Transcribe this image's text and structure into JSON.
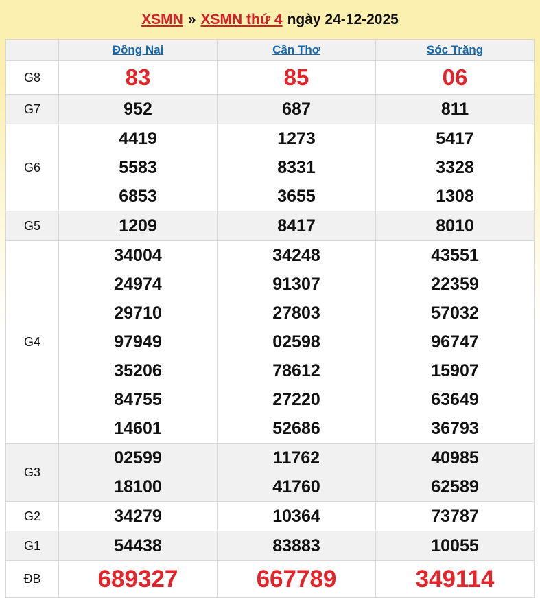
{
  "header": {
    "link_xsmn": "XSMN",
    "separator": "»",
    "link_day": "XSMN thứ 4",
    "date_text": "ngày 24-12-2025"
  },
  "colors": {
    "page_background": "#fcf0b0",
    "shade_row": "#f1f1f1",
    "highlight_red": "#e4242b",
    "link_blue": "#1568ad",
    "border": "#d8d8d8"
  },
  "table": {
    "columns": [
      "Đồng Nai",
      "Cần Thơ",
      "Sóc Trăng"
    ],
    "rows": [
      {
        "label": "G8",
        "values": [
          [
            "83"
          ],
          [
            "85"
          ],
          [
            "06"
          ]
        ]
      },
      {
        "label": "G7",
        "values": [
          [
            "952"
          ],
          [
            "687"
          ],
          [
            "811"
          ]
        ]
      },
      {
        "label": "G6",
        "values": [
          [
            "4419",
            "5583",
            "6853"
          ],
          [
            "1273",
            "8331",
            "3655"
          ],
          [
            "5417",
            "3328",
            "1308"
          ]
        ]
      },
      {
        "label": "G5",
        "values": [
          [
            "1209"
          ],
          [
            "8417"
          ],
          [
            "8010"
          ]
        ]
      },
      {
        "label": "G4",
        "values": [
          [
            "34004",
            "24974",
            "29710",
            "97949",
            "35206",
            "84755",
            "14601"
          ],
          [
            "34248",
            "91307",
            "27803",
            "02598",
            "78612",
            "27220",
            "52686"
          ],
          [
            "43551",
            "22359",
            "57032",
            "96747",
            "15907",
            "63649",
            "36793"
          ]
        ]
      },
      {
        "label": "G3",
        "values": [
          [
            "02599",
            "18100"
          ],
          [
            "11762",
            "41760"
          ],
          [
            "40985",
            "62589"
          ]
        ]
      },
      {
        "label": "G2",
        "values": [
          [
            "34279"
          ],
          [
            "10364"
          ],
          [
            "73787"
          ]
        ]
      },
      {
        "label": "G1",
        "values": [
          [
            "54438"
          ],
          [
            "83883"
          ],
          [
            "10055"
          ]
        ]
      },
      {
        "label": "ĐB",
        "values": [
          [
            "689327"
          ],
          [
            "667789"
          ],
          [
            "349114"
          ]
        ]
      }
    ]
  }
}
